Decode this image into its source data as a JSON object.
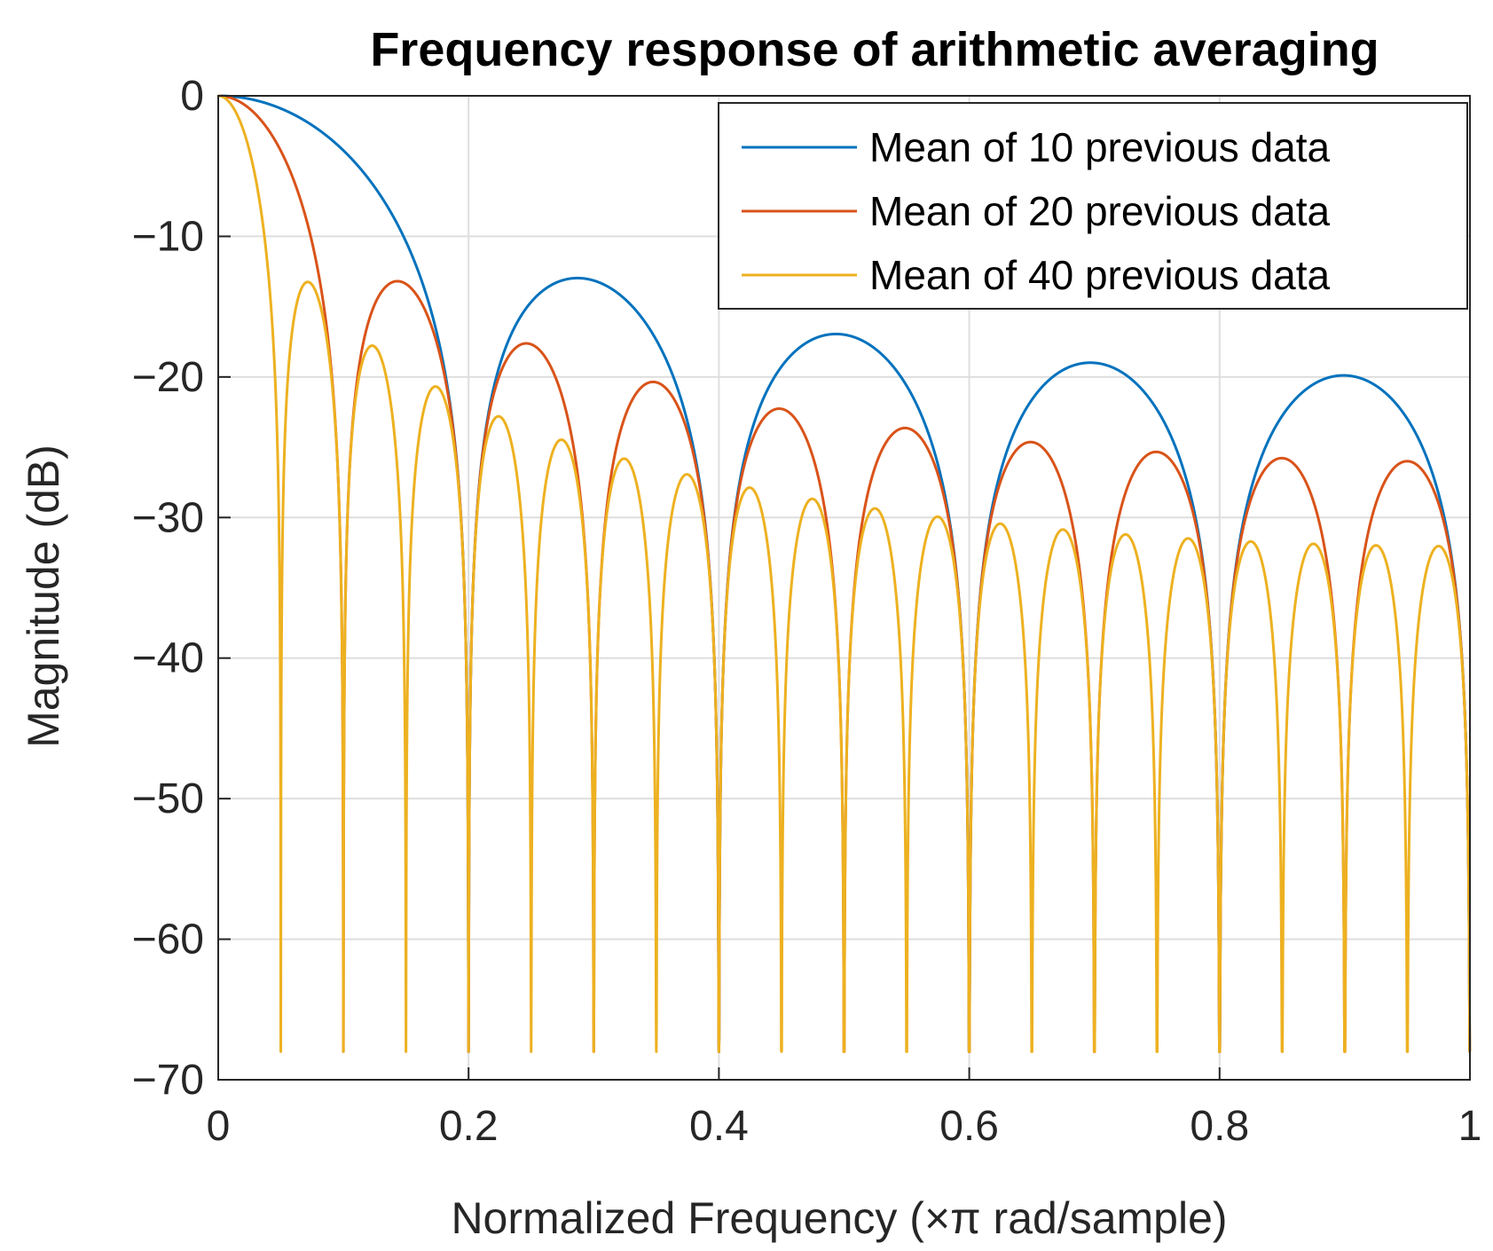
{
  "chart_data": {
    "type": "line",
    "title": "Frequency response of arithmetic averaging",
    "xlabel": "Normalized Frequency (×π rad/sample)",
    "ylabel": "Magnitude (dB)",
    "xlim": [
      0,
      1
    ],
    "ylim": [
      -70,
      0
    ],
    "xticks": [
      0,
      0.2,
      0.4,
      0.6,
      0.8,
      1
    ],
    "xtick_labels": [
      "0",
      "0.2",
      "0.4",
      "0.6",
      "0.8",
      "1"
    ],
    "yticks": [
      0,
      -10,
      -20,
      -30,
      -40,
      -50,
      -60,
      -70
    ],
    "ytick_labels": [
      "0",
      "−10",
      "−20",
      "−30",
      "−40",
      "−50",
      "−60",
      "−70"
    ],
    "grid": true,
    "legend_location": "top-right",
    "series": [
      {
        "name": "Mean of 10 previous data",
        "window_length": 10,
        "color": "#0072BD"
      },
      {
        "name": "Mean of 20 previous data",
        "window_length": 20,
        "color": "#D95319"
      },
      {
        "name": "Mean of 40 previous data",
        "window_length": 40,
        "color": "#EDB120"
      }
    ]
  }
}
